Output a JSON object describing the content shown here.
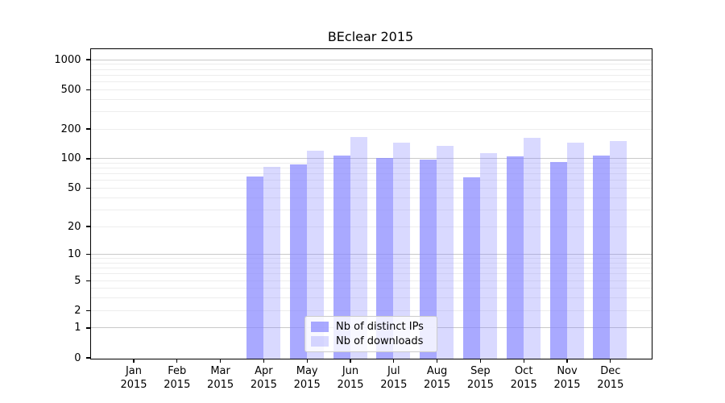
{
  "chart_data": {
    "type": "bar",
    "title": "BEclear 2015",
    "x_tick_line2": "2015",
    "categories": [
      "Jan",
      "Feb",
      "Mar",
      "Apr",
      "May",
      "Jun",
      "Jul",
      "Aug",
      "Sep",
      "Oct",
      "Nov",
      "Dec"
    ],
    "series": [
      {
        "name": "Nb of distinct IPs",
        "color": "#8888ff",
        "opacity": 0.72,
        "values": [
          0,
          0,
          0,
          67,
          89,
          108,
          103,
          98,
          65,
          106,
          94,
          109
        ]
      },
      {
        "name": "Nb of downloads",
        "color": "#8888ff",
        "opacity": 0.32,
        "values": [
          0,
          0,
          0,
          84,
          122,
          167,
          147,
          137,
          116,
          163,
          148,
          152
        ]
      }
    ],
    "y_ticks": [
      0,
      1,
      2,
      5,
      10,
      20,
      50,
      100,
      200,
      500,
      1000
    ],
    "y_scale": "log10(value+1)",
    "y_range_top": 1280,
    "grid": "horizontal major+minor",
    "legend": {
      "position": "lower center",
      "entries": [
        "Nb of distinct IPs",
        "Nb of downloads"
      ]
    },
    "colors": {
      "bar_base": "#8888ff",
      "major_grid": "#c9c9c9",
      "minor_grid": "#ededed",
      "axis_frame": "#000000",
      "legend_border": "#cccccc"
    }
  }
}
